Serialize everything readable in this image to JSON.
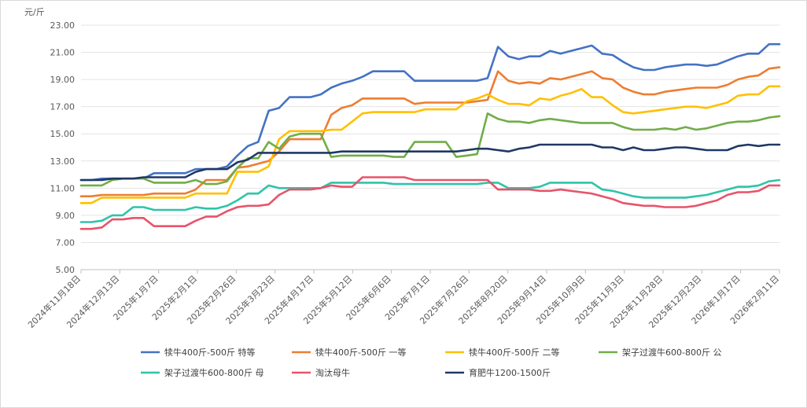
{
  "chart_data": {
    "type": "line",
    "ylabel": "元/斤",
    "ylim": [
      5,
      23
    ],
    "yticks": [
      "23.00",
      "21.00",
      "19.00",
      "17.00",
      "15.00",
      "13.00",
      "11.00",
      "9.00",
      "7.00",
      "5.00"
    ],
    "grid": "horizontal",
    "legend": "bottom",
    "x_tick_labels": [
      "2024年11月18日",
      "2024年12月13日",
      "2025年1月7日",
      "2025年2月1日",
      "2025年2月26日",
      "2025年3月23日",
      "2025年4月17日",
      "2025年5月12日",
      "2025年6月6日",
      "2025年7月1日",
      "2025年7月26日",
      "2025年8月20日",
      "2025年9月14日",
      "2025年10月9日",
      "2025年11月3日",
      "2025年11月28日",
      "2025年12月23日",
      "2026年1月17日",
      "2026年2月11日"
    ],
    "x_points": 68,
    "series": [
      {
        "name": "犊牛400斤-500斤 特等",
        "color": "#4472C4",
        "values": [
          11.6,
          11.6,
          11.7,
          11.7,
          11.7,
          11.7,
          11.7,
          12.1,
          12.1,
          12.1,
          12.1,
          12.4,
          12.4,
          12.4,
          12.6,
          13.4,
          14.1,
          14.4,
          16.7,
          16.9,
          17.7,
          17.7,
          17.7,
          17.9,
          18.4,
          18.7,
          18.9,
          19.2,
          19.6,
          19.6,
          19.6,
          19.6,
          18.9,
          18.9,
          18.9,
          18.9,
          18.9,
          18.9,
          18.9,
          19.1,
          21.4,
          20.7,
          20.5,
          20.7,
          20.7,
          21.1,
          20.9,
          21.1,
          21.3,
          21.5,
          20.9,
          20.8,
          20.3,
          19.9,
          19.7,
          19.7,
          19.9,
          20.0,
          20.1,
          20.1,
          20.0,
          20.1,
          20.4,
          20.7,
          20.9,
          20.9,
          21.6,
          21.6
        ]
      },
      {
        "name": "犊牛400斤-500斤 一等",
        "color": "#ED7D31",
        "values": [
          10.4,
          10.4,
          10.5,
          10.5,
          10.5,
          10.5,
          10.5,
          10.6,
          10.6,
          10.6,
          10.6,
          10.9,
          11.6,
          11.6,
          11.6,
          12.5,
          12.6,
          12.8,
          13.0,
          13.7,
          14.6,
          14.6,
          14.6,
          14.6,
          16.4,
          16.9,
          17.1,
          17.6,
          17.6,
          17.6,
          17.6,
          17.6,
          17.2,
          17.3,
          17.3,
          17.3,
          17.3,
          17.3,
          17.4,
          17.5,
          19.6,
          18.9,
          18.7,
          18.8,
          18.7,
          19.1,
          19.0,
          19.2,
          19.4,
          19.6,
          19.1,
          19.0,
          18.4,
          18.1,
          17.9,
          17.9,
          18.1,
          18.2,
          18.3,
          18.4,
          18.4,
          18.4,
          18.6,
          19.0,
          19.2,
          19.3,
          19.8,
          19.9
        ]
      },
      {
        "name": "犊牛400斤-500斤 二等",
        "color": "#FFC000",
        "values": [
          9.9,
          9.9,
          10.3,
          10.3,
          10.3,
          10.3,
          10.3,
          10.3,
          10.3,
          10.3,
          10.3,
          10.6,
          10.6,
          10.6,
          10.6,
          12.2,
          12.2,
          12.2,
          12.6,
          14.6,
          15.2,
          15.2,
          15.2,
          15.2,
          15.3,
          15.3,
          15.9,
          16.5,
          16.6,
          16.6,
          16.6,
          16.6,
          16.6,
          16.8,
          16.8,
          16.8,
          16.8,
          17.4,
          17.6,
          17.9,
          17.5,
          17.2,
          17.2,
          17.1,
          17.6,
          17.5,
          17.8,
          18.0,
          18.3,
          17.7,
          17.7,
          17.1,
          16.6,
          16.5,
          16.6,
          16.7,
          16.8,
          16.9,
          17.0,
          17.0,
          16.9,
          17.1,
          17.3,
          17.8,
          17.9,
          17.9,
          18.5,
          18.5
        ]
      },
      {
        "name": "架子过渡牛600-800斤 公",
        "color": "#70AD47",
        "values": [
          11.2,
          11.2,
          11.2,
          11.6,
          11.7,
          11.7,
          11.7,
          11.4,
          11.4,
          11.4,
          11.4,
          11.6,
          11.3,
          11.3,
          11.5,
          12.5,
          13.2,
          13.2,
          14.4,
          13.9,
          14.8,
          15.0,
          15.0,
          15.0,
          13.3,
          13.4,
          13.4,
          13.4,
          13.4,
          13.4,
          13.3,
          13.3,
          14.4,
          14.4,
          14.4,
          14.4,
          13.3,
          13.4,
          13.5,
          16.5,
          16.1,
          15.9,
          15.9,
          15.8,
          16.0,
          16.1,
          16.0,
          15.9,
          15.8,
          15.8,
          15.8,
          15.8,
          15.5,
          15.3,
          15.3,
          15.3,
          15.4,
          15.3,
          15.5,
          15.3,
          15.4,
          15.6,
          15.8,
          15.9,
          15.9,
          16.0,
          16.2,
          16.3
        ]
      },
      {
        "name": "架子过渡牛600-800斤 母",
        "color": "#2EC4A8",
        "values": [
          8.5,
          8.5,
          8.6,
          9.0,
          9.0,
          9.6,
          9.6,
          9.4,
          9.4,
          9.4,
          9.4,
          9.6,
          9.5,
          9.5,
          9.7,
          10.1,
          10.6,
          10.6,
          11.2,
          11.0,
          11.0,
          11.0,
          11.0,
          11.0,
          11.4,
          11.4,
          11.4,
          11.4,
          11.4,
          11.4,
          11.3,
          11.3,
          11.3,
          11.3,
          11.3,
          11.3,
          11.3,
          11.3,
          11.3,
          11.4,
          11.4,
          11.0,
          11.0,
          11.0,
          11.1,
          11.4,
          11.4,
          11.4,
          11.4,
          11.4,
          10.9,
          10.8,
          10.6,
          10.4,
          10.3,
          10.3,
          10.3,
          10.3,
          10.3,
          10.4,
          10.5,
          10.7,
          10.9,
          11.1,
          11.1,
          11.2,
          11.5,
          11.6
        ]
      },
      {
        "name": "淘汰母牛",
        "color": "#E8536A",
        "values": [
          8.0,
          8.0,
          8.1,
          8.7,
          8.7,
          8.8,
          8.8,
          8.2,
          8.2,
          8.2,
          8.2,
          8.6,
          8.9,
          8.9,
          9.3,
          9.6,
          9.7,
          9.7,
          9.8,
          10.5,
          10.9,
          10.9,
          10.9,
          11.0,
          11.2,
          11.1,
          11.1,
          11.8,
          11.8,
          11.8,
          11.8,
          11.8,
          11.6,
          11.6,
          11.6,
          11.6,
          11.6,
          11.6,
          11.6,
          11.6,
          10.9,
          10.9,
          10.9,
          10.9,
          10.8,
          10.8,
          10.9,
          10.8,
          10.7,
          10.6,
          10.4,
          10.2,
          9.9,
          9.8,
          9.7,
          9.7,
          9.6,
          9.6,
          9.6,
          9.7,
          9.9,
          10.1,
          10.5,
          10.7,
          10.7,
          10.8,
          11.2,
          11.2
        ]
      },
      {
        "name": "育肥牛1200-1500斤",
        "color": "#203864",
        "values": [
          11.6,
          11.6,
          11.6,
          11.7,
          11.7,
          11.7,
          11.8,
          11.8,
          11.8,
          11.8,
          11.8,
          12.2,
          12.4,
          12.4,
          12.4,
          12.9,
          13.1,
          13.6,
          13.6,
          13.6,
          13.6,
          13.6,
          13.6,
          13.6,
          13.6,
          13.7,
          13.7,
          13.7,
          13.7,
          13.7,
          13.7,
          13.7,
          13.7,
          13.7,
          13.7,
          13.7,
          13.7,
          13.8,
          13.9,
          13.9,
          13.8,
          13.7,
          13.9,
          14.0,
          14.2,
          14.2,
          14.2,
          14.2,
          14.2,
          14.2,
          14.0,
          14.0,
          13.8,
          14.0,
          13.8,
          13.8,
          13.9,
          14.0,
          14.0,
          13.9,
          13.8,
          13.8,
          13.8,
          14.1,
          14.2,
          14.1,
          14.2,
          14.2
        ]
      }
    ]
  }
}
